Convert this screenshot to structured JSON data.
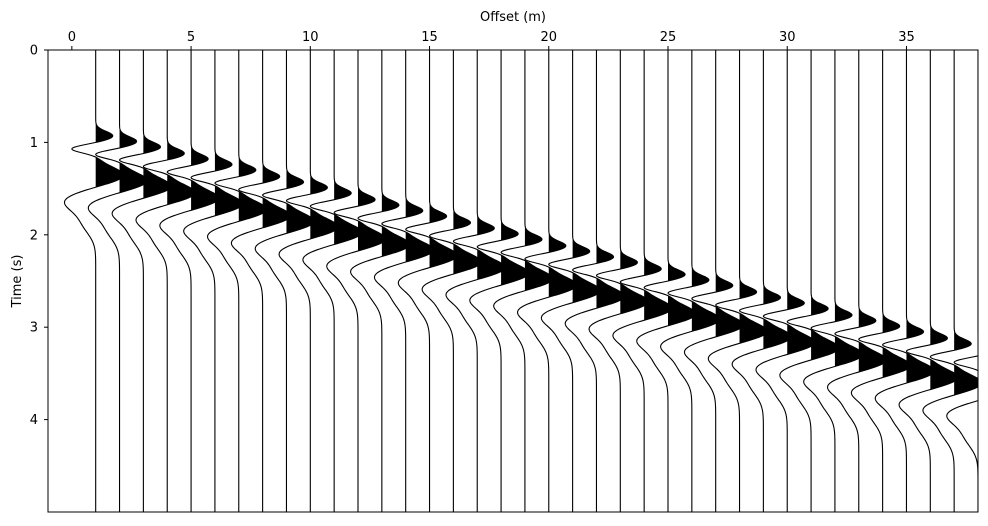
{
  "chart_data": {
    "type": "seismic-wiggle",
    "title": "",
    "xlabel": "Offset (m)",
    "ylabel": "Time (s)",
    "x_axis_position": "top",
    "y_inverted": true,
    "xlim": [
      -1,
      38
    ],
    "ylim": [
      0,
      5
    ],
    "x_ticks": [
      0,
      5,
      10,
      15,
      20,
      25,
      30,
      35
    ],
    "y_ticks": [
      0,
      1,
      2,
      3,
      4
    ],
    "trace_offsets": [
      1,
      2,
      3,
      4,
      5,
      6,
      7,
      8,
      9,
      10,
      11,
      12,
      13,
      14,
      15,
      16,
      17,
      18,
      19,
      20,
      21,
      22,
      23,
      24,
      25,
      26,
      27,
      28,
      29,
      30,
      31,
      32,
      33,
      34,
      35,
      36,
      37,
      38
    ],
    "first_arrival_times": [
      1.31,
      1.37,
      1.43,
      1.5,
      1.56,
      1.62,
      1.68,
      1.75,
      1.81,
      1.87,
      1.93,
      2.0,
      2.06,
      2.12,
      2.18,
      2.25,
      2.31,
      2.37,
      2.43,
      2.5,
      2.56,
      2.62,
      2.68,
      2.75,
      2.81,
      2.87,
      2.93,
      3.0,
      3.06,
      3.12,
      3.18,
      3.25,
      3.31,
      3.37,
      3.43,
      3.5,
      3.56,
      3.62
    ],
    "fill": "positive",
    "line_color": "#000000",
    "fill_color": "#000000"
  }
}
